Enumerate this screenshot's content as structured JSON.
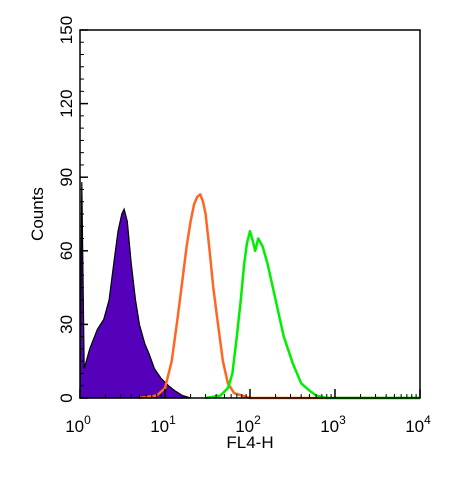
{
  "chart_data": {
    "type": "area",
    "title": "",
    "xlabel": "FL4-H",
    "ylabel": "Counts",
    "xscale": "log",
    "xlim": [
      1,
      10000
    ],
    "ylim": [
      0,
      150
    ],
    "grid": false,
    "x_ticks": [
      {
        "base": "10",
        "exp": "0"
      },
      {
        "base": "10",
        "exp": "1"
      },
      {
        "base": "10",
        "exp": "2"
      },
      {
        "base": "10",
        "exp": "3"
      },
      {
        "base": "10",
        "exp": "4"
      }
    ],
    "y_ticks": [
      "0",
      "30",
      "60",
      "90",
      "120",
      "150"
    ],
    "series": [
      {
        "color": "#5500bb",
        "filled": true,
        "points": [
          [
            1,
            0
          ],
          [
            1.05,
            88
          ],
          [
            1.12,
            12
          ],
          [
            1.3,
            20
          ],
          [
            1.6,
            28
          ],
          [
            1.9,
            32
          ],
          [
            2.2,
            40
          ],
          [
            2.5,
            55
          ],
          [
            2.8,
            68
          ],
          [
            3.1,
            75
          ],
          [
            3.3,
            77
          ],
          [
            3.6,
            72
          ],
          [
            4.0,
            55
          ],
          [
            4.5,
            40
          ],
          [
            5.0,
            30
          ],
          [
            5.8,
            22
          ],
          [
            6.5,
            18
          ],
          [
            7.5,
            12
          ],
          [
            9,
            8
          ],
          [
            11,
            5
          ],
          [
            13,
            3
          ],
          [
            16,
            1
          ],
          [
            20,
            0
          ]
        ]
      },
      {
        "color": "#ff6622",
        "filled": false,
        "points": [
          [
            5,
            0
          ],
          [
            8,
            1
          ],
          [
            10,
            4
          ],
          [
            12,
            15
          ],
          [
            14,
            32
          ],
          [
            16,
            48
          ],
          [
            18,
            62
          ],
          [
            20,
            72
          ],
          [
            22,
            79
          ],
          [
            24,
            82
          ],
          [
            26,
            83
          ],
          [
            28,
            80
          ],
          [
            30,
            75
          ],
          [
            33,
            62
          ],
          [
            37,
            45
          ],
          [
            42,
            30
          ],
          [
            48,
            15
          ],
          [
            55,
            6
          ],
          [
            65,
            2
          ],
          [
            80,
            1
          ],
          [
            100,
            0
          ],
          [
            300,
            0
          ],
          [
            10000,
            0
          ]
        ]
      },
      {
        "color": "#00ee00",
        "filled": false,
        "points": [
          [
            30,
            0
          ],
          [
            45,
            1
          ],
          [
            55,
            4
          ],
          [
            62,
            10
          ],
          [
            70,
            25
          ],
          [
            78,
            40
          ],
          [
            85,
            54
          ],
          [
            92,
            63
          ],
          [
            100,
            68
          ],
          [
            108,
            64
          ],
          [
            115,
            60
          ],
          [
            125,
            65
          ],
          [
            140,
            62
          ],
          [
            160,
            55
          ],
          [
            200,
            40
          ],
          [
            250,
            25
          ],
          [
            320,
            14
          ],
          [
            400,
            6
          ],
          [
            500,
            3
          ],
          [
            600,
            1
          ],
          [
            800,
            0
          ],
          [
            10000,
            0
          ]
        ]
      }
    ]
  }
}
